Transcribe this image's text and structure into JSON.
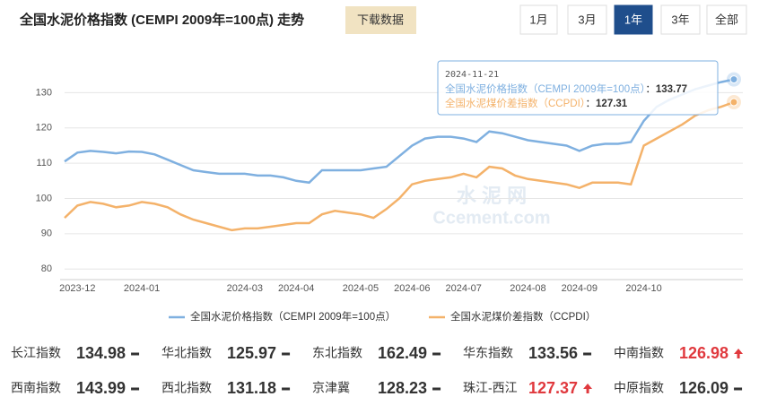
{
  "header": {
    "title": "全国水泥价格指数 (CEMPI 2009年=100点) 走势",
    "download": "下载数据",
    "ranges": [
      "1月",
      "3月",
      "1年",
      "3年",
      "全部"
    ],
    "active_range": 2
  },
  "chart_data": {
    "type": "line",
    "categories": [
      null,
      "2023-12",
      null,
      null,
      null,
      null,
      "2024-01",
      null,
      null,
      null,
      null,
      null,
      null,
      null,
      "2024-03",
      null,
      null,
      null,
      "2024-04",
      null,
      null,
      null,
      null,
      "2024-05",
      null,
      null,
      null,
      "2024-06",
      null,
      null,
      null,
      "2024-07",
      null,
      null,
      null,
      null,
      "2024-08",
      null,
      null,
      null,
      "2024-09",
      null,
      null,
      null,
      null,
      "2024-10",
      null,
      null,
      null,
      null,
      null,
      null,
      null
    ],
    "series": [
      {
        "name": "全国水泥价格指数（CEMPI 2009年=100点）",
        "color": "#7fb0e0",
        "values": [
          110.5,
          113,
          113.5,
          113.2,
          112.8,
          113.3,
          113.2,
          112.5,
          111,
          109.5,
          108,
          107.5,
          107,
          107,
          107,
          106.5,
          106.5,
          106,
          105,
          104.5,
          108,
          108,
          108,
          108,
          108.5,
          109,
          112,
          115,
          117,
          117.5,
          117.5,
          117,
          116,
          119,
          118.5,
          117.5,
          116.5,
          116,
          115.5,
          115,
          113.5,
          115,
          115.5,
          115.5,
          116,
          122,
          126,
          128,
          129.5,
          131,
          132,
          133,
          133.77
        ]
      },
      {
        "name": "全国水泥煤价差指数（CCPDI）",
        "color": "#f4b26a",
        "values": [
          94.5,
          98,
          99,
          98.5,
          97.5,
          98,
          99,
          98.5,
          97.5,
          95.5,
          94,
          93,
          92,
          91,
          91.5,
          91.5,
          92,
          92.5,
          93,
          93,
          95.5,
          96.5,
          96,
          95.5,
          94.5,
          97,
          100,
          104,
          105,
          105.5,
          106,
          107,
          106,
          109,
          108.5,
          106.5,
          105.5,
          105,
          104.5,
          104,
          103,
          104.5,
          104.5,
          104.5,
          104,
          115,
          117,
          119,
          121,
          123.5,
          125,
          126,
          127.31
        ]
      }
    ],
    "ylim": [
      77,
      139
    ],
    "yticks": [
      80,
      90,
      100,
      110,
      120,
      130
    ],
    "grid": true,
    "tooltip": {
      "date": "2024-11-21",
      "separator": "："
    },
    "watermark": [
      "水 泥 网",
      "Ccement.com"
    ]
  },
  "regions": [
    {
      "name": "长江指数",
      "value": 134.98,
      "trend": "flat"
    },
    {
      "name": "华北指数",
      "value": 125.97,
      "trend": "flat"
    },
    {
      "name": "东北指数",
      "value": 162.49,
      "trend": "flat"
    },
    {
      "name": "华东指数",
      "value": 133.56,
      "trend": "flat"
    },
    {
      "name": "中南指数",
      "value": 126.98,
      "trend": "up"
    },
    {
      "name": "西南指数",
      "value": 143.99,
      "trend": "flat"
    },
    {
      "name": "西北指数",
      "value": 131.18,
      "trend": "flat"
    },
    {
      "name": "京津冀",
      "value": 128.23,
      "trend": "flat"
    },
    {
      "name": "珠江-西江",
      "value": 127.37,
      "trend": "up"
    },
    {
      "name": "中原指数",
      "value": 126.09,
      "trend": "flat"
    }
  ]
}
